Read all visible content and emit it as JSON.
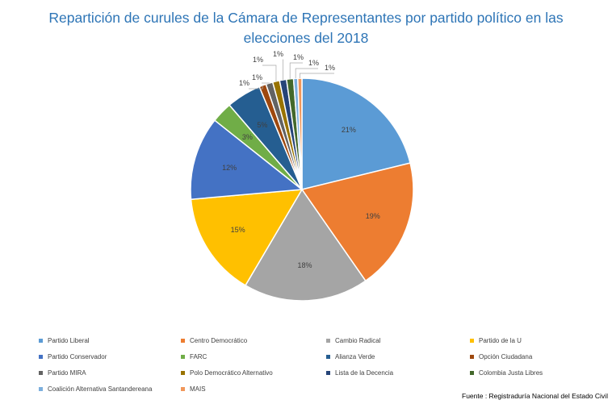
{
  "chart_data": {
    "type": "pie",
    "title": "Repartición de curules de la Cámara de Representantes por partido político  en las elecciones del 2018",
    "slices": [
      {
        "name": "Partido Liberal",
        "value": 21,
        "label": "21%",
        "color": "#5b9bd5"
      },
      {
        "name": "Centro Democrático",
        "value": 19,
        "label": "19%",
        "color": "#ed7d31"
      },
      {
        "name": "Cambio Radical",
        "value": 18,
        "label": "18%",
        "color": "#a5a5a5"
      },
      {
        "name": "Partido de la U",
        "value": 15,
        "label": "15%",
        "color": "#ffc000"
      },
      {
        "name": "Partido Conservador",
        "value": 12,
        "label": "12%",
        "color": "#4472c4"
      },
      {
        "name": "FARC",
        "value": 3,
        "label": "3%",
        "color": "#70ad47"
      },
      {
        "name": "Alianza Verde",
        "value": 5,
        "label": "5%",
        "color": "#255e91"
      },
      {
        "name": "Opción Ciudadana",
        "value": 1,
        "label": "1%",
        "color": "#9e480e"
      },
      {
        "name": "Partido MIRA",
        "value": 1,
        "label": "1%",
        "color": "#636363"
      },
      {
        "name": "Polo Democrático Alternativo",
        "value": 1,
        "label": "1%",
        "color": "#997300"
      },
      {
        "name": "Lista de la Decencia",
        "value": 1,
        "label": "1%",
        "color": "#264478"
      },
      {
        "name": "Colombia Justa Libres",
        "value": 1,
        "label": "1%",
        "color": "#43682b"
      },
      {
        "name": "Coalición Alternativa Santandereana",
        "value": 0.6,
        "label": "1%",
        "color": "#7cafdd"
      },
      {
        "name": "MAIS",
        "value": 0.6,
        "label": "1%",
        "color": "#f1975a"
      }
    ],
    "legend_position": "bottom"
  },
  "source_note": "Fuente : Registraduría Nacional del Estado Civil"
}
